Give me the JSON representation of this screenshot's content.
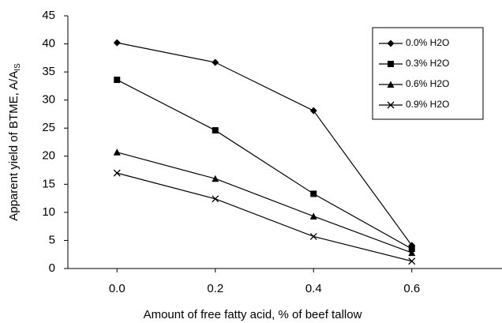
{
  "chart_data": {
    "type": "line",
    "x_label": "Amount of free fatty acid, % of beef tallow",
    "y_label": "Apparent yield of BTME, A/A",
    "y_label_subscript": "IS",
    "x": [
      0,
      0.2,
      0.4,
      0.6
    ],
    "xlim": [
      -0.1,
      0.7
    ],
    "xticks": [
      {
        "value": 0,
        "label": "0.0"
      },
      {
        "value": 0.2,
        "label": "0.2"
      },
      {
        "value": 0.4,
        "label": "0.4"
      },
      {
        "value": 0.6,
        "label": "0.6"
      }
    ],
    "ylim": [
      0,
      45
    ],
    "yticks": [
      0,
      5,
      10,
      15,
      20,
      25,
      30,
      35,
      40,
      45
    ],
    "legend": "upper right",
    "series": [
      {
        "name": "0.0% H2O",
        "color": "#000000",
        "marker": "diamond",
        "values": [
          40.2,
          36.7,
          28.1,
          4.1
        ]
      },
      {
        "name": "0.3% H2O",
        "color": "#000000",
        "marker": "square",
        "values": [
          33.6,
          24.6,
          13.3,
          3.5
        ]
      },
      {
        "name": "0.6% H2O",
        "color": "#000000",
        "marker": "triangle",
        "values": [
          20.7,
          16.0,
          9.3,
          2.8
        ]
      },
      {
        "name": "0.9% H2O",
        "color": "#000000",
        "marker": "x",
        "values": [
          17.0,
          12.4,
          5.7,
          1.3
        ]
      }
    ]
  }
}
